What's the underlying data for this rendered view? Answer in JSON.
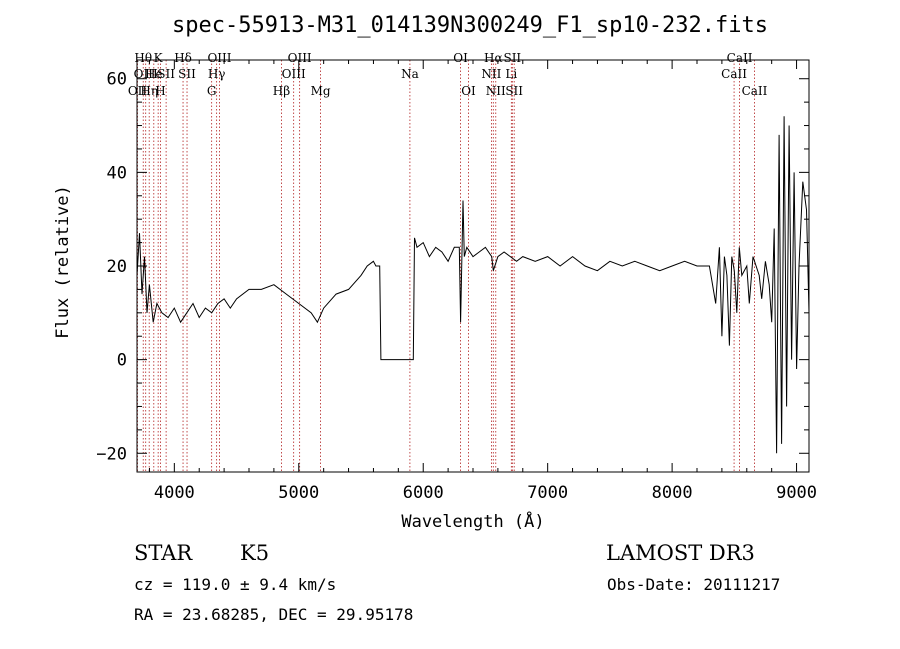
{
  "chart_data": {
    "type": "line",
    "title": "spec-55913-M31_014139N300249_F1_sp10-232.fits",
    "xlabel": "Wavelength (Å)",
    "ylabel": "Flux (relative)",
    "xlim": [
      3700,
      9100
    ],
    "ylim": [
      -24,
      64
    ],
    "x_ticks": [
      4000,
      5000,
      6000,
      7000,
      8000,
      9000
    ],
    "x_tick_labels": [
      "4000",
      "5000",
      "6000",
      "7000",
      "8000",
      "9000"
    ],
    "y_ticks": [
      -20,
      0,
      20,
      40,
      60
    ],
    "y_tick_labels": [
      "−20",
      "0",
      "20",
      "40",
      "60"
    ],
    "grid": false,
    "series": [
      {
        "color": "#000000",
        "x": [
          3700,
          3720,
          3740,
          3760,
          3780,
          3800,
          3830,
          3860,
          3900,
          3950,
          4000,
          4050,
          4100,
          4150,
          4200,
          4250,
          4300,
          4350,
          4400,
          4450,
          4500,
          4600,
          4700,
          4800,
          4900,
          5000,
          5100,
          5150,
          5200,
          5300,
          5400,
          5500,
          5550,
          5600,
          5620,
          5650,
          5660,
          5680,
          5900,
          5910,
          5920,
          5930,
          5950,
          6000,
          6050,
          6100,
          6150,
          6200,
          6250,
          6290,
          6300,
          6320,
          6330,
          6350,
          6400,
          6450,
          6500,
          6550,
          6563,
          6600,
          6650,
          6700,
          6750,
          6800,
          6900,
          7000,
          7100,
          7200,
          7300,
          7400,
          7500,
          7600,
          7700,
          7800,
          7900,
          8000,
          8100,
          8200,
          8300,
          8350,
          8380,
          8400,
          8420,
          8440,
          8460,
          8480,
          8500,
          8520,
          8540,
          8560,
          8600,
          8620,
          8650,
          8700,
          8720,
          8750,
          8780,
          8800,
          8820,
          8840,
          8860,
          8880,
          8900,
          8920,
          8940,
          8960,
          8980,
          9000,
          9020,
          9050,
          9080,
          9100
        ],
        "y": [
          18,
          27,
          14,
          22,
          10,
          16,
          8,
          12,
          10,
          9,
          11,
          8,
          10,
          12,
          9,
          11,
          10,
          12,
          13,
          11,
          13,
          15,
          15,
          16,
          14,
          12,
          10,
          8,
          11,
          14,
          15,
          18,
          20,
          21,
          20,
          20,
          0,
          0,
          0,
          0,
          0,
          26,
          24,
          25,
          22,
          24,
          23,
          21,
          24,
          24,
          8,
          34,
          22,
          24,
          22,
          23,
          24,
          22,
          19,
          22,
          23,
          22,
          21,
          22,
          21,
          22,
          20,
          22,
          20,
          19,
          21,
          20,
          21,
          20,
          19,
          20,
          21,
          20,
          20,
          12,
          24,
          5,
          22,
          18,
          3,
          22,
          19,
          10,
          24,
          18,
          20,
          12,
          22,
          18,
          13,
          21,
          16,
          8,
          28,
          -20,
          48,
          -18,
          52,
          -10,
          50,
          0,
          40,
          -2,
          20,
          38,
          32,
          10
        ],
        "note_vals": []
      }
    ],
    "line_markers": [
      {
        "w": 3704,
        "label": "OII",
        "row": 3
      },
      {
        "w": 3750,
        "label": "Hθ",
        "row": 1
      },
      {
        "w": 3770,
        "label": "OIII",
        "row": 2
      },
      {
        "w": 3798,
        "label": "Hη",
        "row": 3
      },
      {
        "w": 3835,
        "label": "He",
        "row": 2
      },
      {
        "w": 3870,
        "label": "K",
        "row": 1
      },
      {
        "w": 3889,
        "label": "H",
        "row": 3
      },
      {
        "w": 3934,
        "label": "SII",
        "row": 2
      },
      {
        "w": 4070,
        "label": "Hδ",
        "row": 1
      },
      {
        "w": 4102,
        "label": "SII",
        "row": 2
      },
      {
        "w": 4300,
        "label": "G",
        "row": 3
      },
      {
        "w": 4340,
        "label": "Hγ",
        "row": 2
      },
      {
        "w": 4363,
        "label": "OIII",
        "row": 1
      },
      {
        "w": 4861,
        "label": "Hβ",
        "row": 3
      },
      {
        "w": 4959,
        "label": "OIII",
        "row": 2
      },
      {
        "w": 5007,
        "label": "OIII",
        "row": 1
      },
      {
        "w": 5175,
        "label": "Mg",
        "row": 3
      },
      {
        "w": 5893,
        "label": "Na",
        "row": 2
      },
      {
        "w": 6300,
        "label": "OI",
        "row": 1
      },
      {
        "w": 6364,
        "label": "OI",
        "row": 3
      },
      {
        "w": 6548,
        "label": "NII",
        "row": 2
      },
      {
        "w": 6563,
        "label": "Hα",
        "row": 1
      },
      {
        "w": 6583,
        "label": "NII",
        "row": 3
      },
      {
        "w": 6708,
        "label": "Li",
        "row": 2
      },
      {
        "w": 6716,
        "label": "SII",
        "row": 1
      },
      {
        "w": 6731,
        "label": "SII",
        "row": 3
      },
      {
        "w": 8498,
        "label": "CaII",
        "row": 2
      },
      {
        "w": 8542,
        "label": "CaII",
        "row": 1
      },
      {
        "w": 8662,
        "label": "CaII",
        "row": 3
      }
    ]
  },
  "info": {
    "class": "STAR",
    "subclass": "K5",
    "survey": "LAMOST DR3",
    "velocity": "cz = 119.0 ± 9.4 km/s",
    "obs_date": "Obs-Date: 20111217",
    "coords": "RA =  23.68285, DEC =  29.95178"
  }
}
